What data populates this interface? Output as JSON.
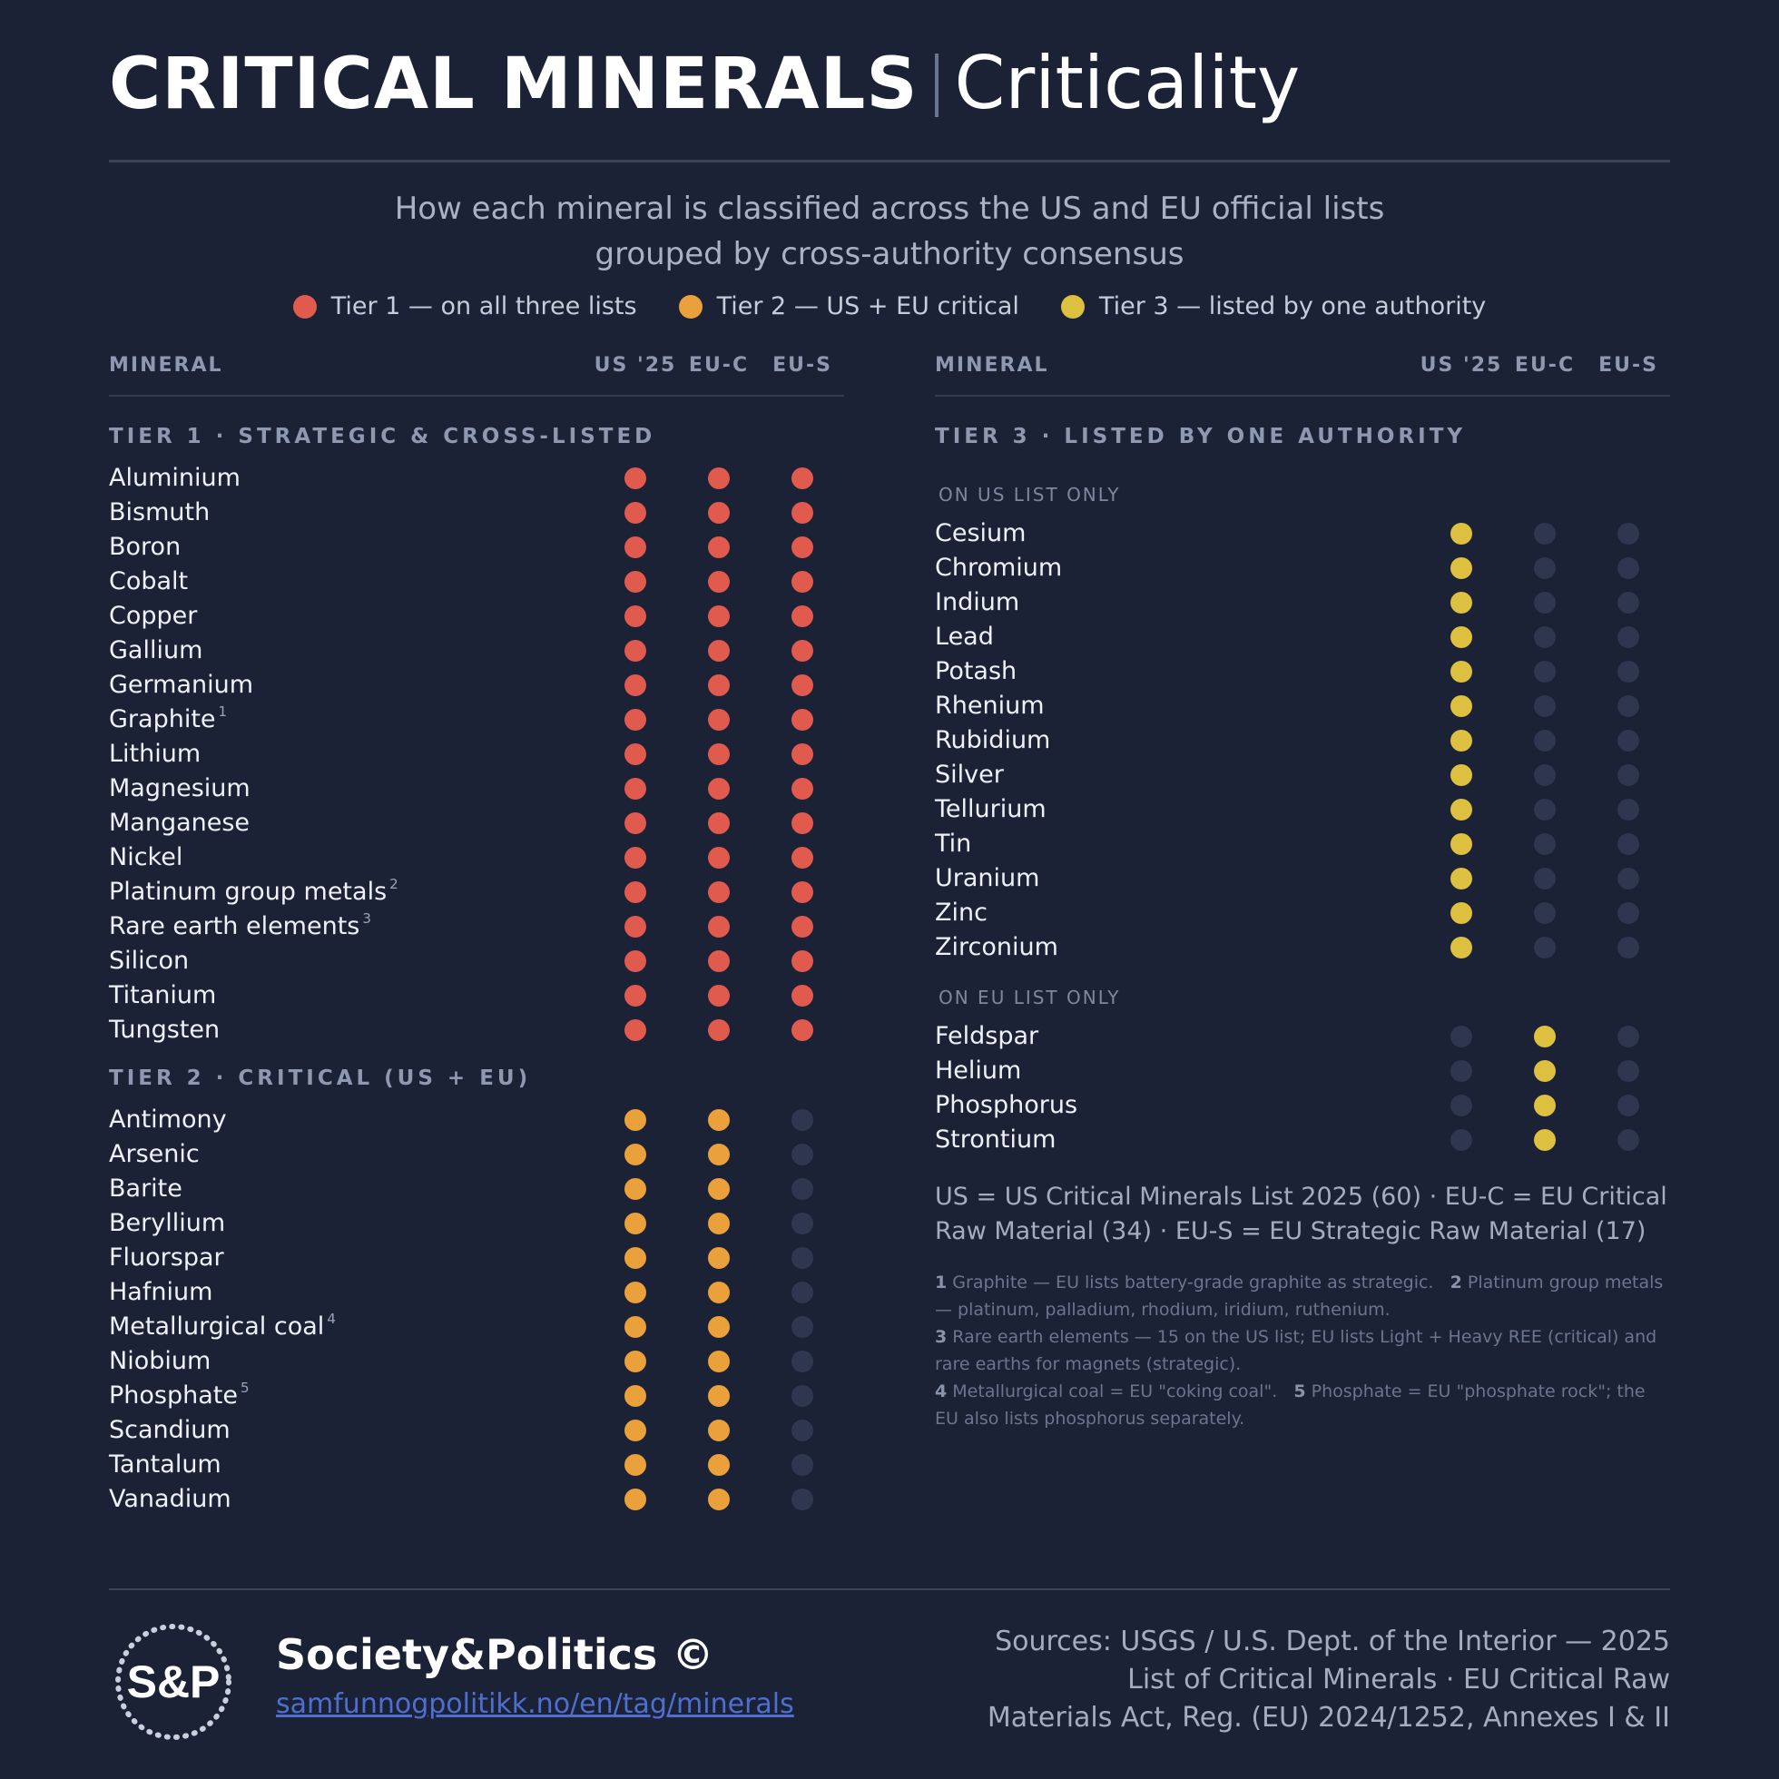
{
  "title": {
    "bold": "CRITICAL MINERALS",
    "light": "Criticality"
  },
  "subtitle": {
    "line1": "How each mineral is classified across the US and EU official lists",
    "line2": "grouped by cross-authority consensus"
  },
  "legend": [
    {
      "label": "Tier 1 — on all three lists",
      "color": "#e05a4e"
    },
    {
      "label": "Tier 2 — US + EU critical",
      "color": "#eba13b"
    },
    {
      "label": "Tier 3 — listed by one authority",
      "color": "#ddc040"
    }
  ],
  "columns": {
    "mineral": "MINERAL",
    "us": "US '25",
    "euc": "EU-C",
    "eus": "EU-S"
  },
  "colors": {
    "tier1": "#e05a4e",
    "tier2": "#eba13b",
    "tier3": "#ddc040",
    "off": "#2e3650"
  },
  "left_panel": {
    "tier1": {
      "heading": "TIER 1 · STRATEGIC & CROSS-LISTED",
      "minerals": [
        {
          "name": "Aluminium"
        },
        {
          "name": "Bismuth"
        },
        {
          "name": "Boron"
        },
        {
          "name": "Cobalt"
        },
        {
          "name": "Copper"
        },
        {
          "name": "Gallium"
        },
        {
          "name": "Germanium"
        },
        {
          "name": "Graphite",
          "note": "1"
        },
        {
          "name": "Lithium"
        },
        {
          "name": "Magnesium"
        },
        {
          "name": "Manganese"
        },
        {
          "name": "Nickel"
        },
        {
          "name": "Platinum group metals",
          "note": "2"
        },
        {
          "name": "Rare earth elements",
          "note": "3"
        },
        {
          "name": "Silicon"
        },
        {
          "name": "Titanium"
        },
        {
          "name": "Tungsten"
        }
      ]
    },
    "tier2": {
      "heading": "TIER 2 · CRITICAL (US + EU)",
      "minerals": [
        {
          "name": "Antimony"
        },
        {
          "name": "Arsenic"
        },
        {
          "name": "Barite"
        },
        {
          "name": "Beryllium"
        },
        {
          "name": "Fluorspar"
        },
        {
          "name": "Hafnium"
        },
        {
          "name": "Metallurgical coal",
          "note": "4"
        },
        {
          "name": "Niobium"
        },
        {
          "name": "Phosphate",
          "note": "5"
        },
        {
          "name": "Scandium"
        },
        {
          "name": "Tantalum"
        },
        {
          "name": "Vanadium"
        }
      ]
    }
  },
  "right_panel": {
    "tier3": {
      "heading": "TIER 3 · LISTED BY ONE AUTHORITY",
      "us_only": {
        "label": "ON US LIST ONLY",
        "minerals": [
          {
            "name": "Cesium"
          },
          {
            "name": "Chromium"
          },
          {
            "name": "Indium"
          },
          {
            "name": "Lead"
          },
          {
            "name": "Potash"
          },
          {
            "name": "Rhenium"
          },
          {
            "name": "Rubidium"
          },
          {
            "name": "Silver"
          },
          {
            "name": "Tellurium"
          },
          {
            "name": "Tin"
          },
          {
            "name": "Uranium"
          },
          {
            "name": "Zinc"
          },
          {
            "name": "Zirconium"
          }
        ]
      },
      "eu_only": {
        "label": "ON EU LIST ONLY",
        "minerals": [
          {
            "name": "Feldspar"
          },
          {
            "name": "Helium"
          },
          {
            "name": "Phosphorus"
          },
          {
            "name": "Strontium"
          }
        ]
      }
    },
    "abbreviations": {
      "line1": "US = US Critical Minerals List 2025 (60)  ·  EU-C = EU Critical",
      "line2": "Raw Material (34)  ·  EU-S = EU Strategic Raw Material (17)"
    },
    "footnotes": {
      "n1_num": "1",
      "n1_text": "Graphite — EU lists battery-grade graphite as strategic.",
      "n2_num": "2",
      "n2_text": "Platinum group metals — platinum, palladium, rhodium, iridium, ruthenium.",
      "n3_num": "3",
      "n3_text": "Rare earth elements — 15 on the US list; EU lists Light + Heavy REE (critical) and rare earths for magnets (strategic).",
      "n4_num": "4",
      "n4_text": "Metallurgical coal = EU \"coking coal\".",
      "n5_num": "5",
      "n5_text": "Phosphate = EU \"phosphate rock\"; the EU also lists phosphorus separately."
    }
  },
  "footer": {
    "logo_text": "S&P",
    "brand": "Society&Politics ©",
    "link": "samfunnogpolitikk.no/en/tag/minerals",
    "sources": {
      "line1": "Sources: USGS / U.S. Dept. of the Interior — 2025",
      "line2": "List of Critical Minerals · EU Critical Raw",
      "line3": "Materials Act, Reg. (EU) 2024/1252, Annexes I & II"
    }
  }
}
